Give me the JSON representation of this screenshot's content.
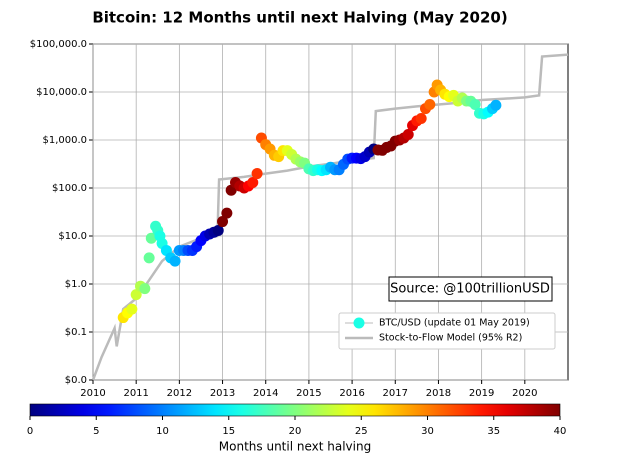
{
  "chart_data": {
    "type": "scatter",
    "title": "Bitcoin: 12 Months until next Halving (May 2020)",
    "annotation": "Source: @100trillionUSD",
    "xlim": [
      2010,
      2021
    ],
    "xticks": [
      2010,
      2011,
      2012,
      2013,
      2014,
      2015,
      2016,
      2017,
      2018,
      2019,
      2020
    ],
    "ylim": [
      0.01,
      100000
    ],
    "log_y": true,
    "grid": true,
    "legend": "lower right",
    "yticks": [
      {
        "value": 0.01,
        "label": "$0.0"
      },
      {
        "value": 0.1,
        "label": "$0.1"
      },
      {
        "value": 1,
        "label": "$1.0"
      },
      {
        "value": 10,
        "label": "$10.0"
      },
      {
        "value": 100,
        "label": "$100.0"
      },
      {
        "value": 1000,
        "label": "$1,000.0"
      },
      {
        "value": 10000,
        "label": "$10,000.0"
      },
      {
        "value": 100000,
        "label": "$100,000.0"
      }
    ],
    "series": [
      {
        "name": "Stock-to-Flow Model (95% R2)",
        "kind": "line",
        "color": "#bbbbbb",
        "x": [
          2010.0,
          2010.2,
          2010.35,
          2010.5,
          2010.55,
          2010.7,
          2011.0,
          2011.3,
          2011.6,
          2012.0,
          2012.5,
          2012.88,
          2012.92,
          2013.5,
          2014.0,
          2014.5,
          2015.0,
          2015.5,
          2016.0,
          2016.5,
          2016.55,
          2017.0,
          2017.5,
          2018.0,
          2018.5,
          2019.0,
          2019.5,
          2020.0,
          2020.33,
          2020.4,
          2021.0
        ],
        "y": [
          0.01,
          0.03,
          0.06,
          0.12,
          0.05,
          0.3,
          0.5,
          1.2,
          3,
          6,
          9,
          10,
          150,
          170,
          200,
          230,
          280,
          320,
          380,
          420,
          4000,
          4500,
          5000,
          5500,
          6000,
          6800,
          7200,
          7700,
          8500,
          55000,
          60000
        ]
      },
      {
        "name": "BTC/USD (update 01 May 2019)",
        "kind": "points",
        "x": [
          2010.7,
          2010.8,
          2010.9,
          2011.0,
          2011.1,
          2011.2,
          2011.3,
          2011.35,
          2011.45,
          2011.5,
          2011.55,
          2011.6,
          2011.7,
          2011.8,
          2011.9,
          2012.0,
          2012.1,
          2012.2,
          2012.3,
          2012.4,
          2012.5,
          2012.6,
          2012.7,
          2012.8,
          2012.9,
          2013.0,
          2013.1,
          2013.2,
          2013.3,
          2013.4,
          2013.5,
          2013.6,
          2013.7,
          2013.8,
          2013.9,
          2014.0,
          2014.1,
          2014.2,
          2014.3,
          2014.4,
          2014.5,
          2014.6,
          2014.7,
          2014.8,
          2014.9,
          2015.0,
          2015.1,
          2015.2,
          2015.3,
          2015.4,
          2015.5,
          2015.6,
          2015.7,
          2015.8,
          2015.9,
          2016.0,
          2016.1,
          2016.2,
          2016.3,
          2016.4,
          2016.5,
          2016.6,
          2016.7,
          2016.8,
          2016.9,
          2017.0,
          2017.1,
          2017.2,
          2017.3,
          2017.4,
          2017.5,
          2017.6,
          2017.7,
          2017.8,
          2017.9,
          2017.97,
          2018.05,
          2018.15,
          2018.25,
          2018.35,
          2018.45,
          2018.55,
          2018.65,
          2018.75,
          2018.85,
          2018.95,
          2019.05,
          2019.15,
          2019.25,
          2019.33
        ],
        "y": [
          0.2,
          0.25,
          0.3,
          0.6,
          0.9,
          0.8,
          3.5,
          9,
          16,
          13,
          10,
          7,
          5,
          3.5,
          3,
          5,
          5,
          5,
          5,
          6,
          8,
          10,
          11,
          12,
          13,
          20,
          30,
          90,
          130,
          110,
          100,
          110,
          130,
          200,
          1100,
          800,
          650,
          480,
          450,
          600,
          600,
          500,
          400,
          350,
          330,
          250,
          230,
          240,
          230,
          240,
          270,
          240,
          240,
          310,
          400,
          420,
          420,
          410,
          450,
          560,
          650,
          620,
          610,
          700,
          750,
          950,
          1000,
          1100,
          1300,
          2000,
          2500,
          2800,
          4500,
          5500,
          10000,
          14000,
          11000,
          9000,
          8000,
          8500,
          6500,
          7500,
          6500,
          6400,
          5500,
          3600,
          3500,
          3800,
          4500,
          5300
        ],
        "c": [
          26,
          25,
          24,
          23,
          22,
          20,
          19,
          19,
          17,
          17,
          16,
          16,
          14,
          13,
          12,
          11,
          10,
          8,
          7,
          6,
          5,
          4,
          2,
          1,
          0,
          42,
          41,
          40,
          39,
          38,
          37,
          35,
          34,
          33,
          32,
          30,
          29,
          28,
          27,
          26,
          24,
          23,
          22,
          21,
          20,
          18,
          17,
          16,
          15,
          14,
          12,
          11,
          10,
          9,
          8,
          6,
          5,
          4,
          3,
          2,
          0,
          45,
          44,
          43,
          42,
          40,
          39,
          38,
          37,
          36,
          34,
          33,
          32,
          31,
          30,
          29,
          28,
          26,
          25,
          24,
          23,
          22,
          20,
          19,
          18,
          17,
          16,
          15,
          13,
          12
        ]
      }
    ],
    "colorbar": {
      "label": "Months until next halving",
      "colormap": "jet",
      "lim": [
        0,
        40
      ],
      "ticks": [
        0,
        5,
        10,
        15,
        20,
        25,
        30,
        35,
        40
      ]
    }
  }
}
